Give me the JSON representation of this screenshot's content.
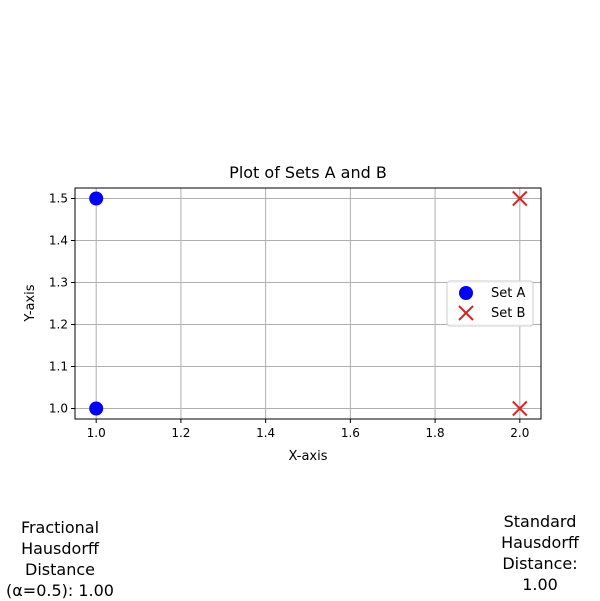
{
  "chart_data": {
    "type": "scatter",
    "title": "Plot of Sets A and B",
    "xlabel": "X-axis",
    "ylabel": "Y-axis",
    "xlim": [
      0.95,
      2.05
    ],
    "ylim": [
      0.975,
      1.525
    ],
    "xticks": [
      1.0,
      1.2,
      1.4,
      1.6,
      1.8,
      2.0
    ],
    "xtick_labels": [
      "1.0",
      "1.2",
      "1.4",
      "1.6",
      "1.8",
      "2.0"
    ],
    "yticks": [
      1.0,
      1.1,
      1.2,
      1.3,
      1.4,
      1.5
    ],
    "ytick_labels": [
      "1.0",
      "1.1",
      "1.2",
      "1.3",
      "1.4",
      "1.5"
    ],
    "grid": true,
    "legend_position": "right",
    "series": [
      {
        "name": "Set A",
        "marker": "circle",
        "color": "#0000ff",
        "points": [
          {
            "x": 1.0,
            "y": 1.0
          },
          {
            "x": 1.0,
            "y": 1.5
          }
        ]
      },
      {
        "name": "Set B",
        "marker": "x",
        "color": "#d62728",
        "points": [
          {
            "x": 2.0,
            "y": 1.0
          },
          {
            "x": 2.0,
            "y": 1.5
          }
        ]
      }
    ]
  },
  "annotations": {
    "fractional": "Fractional\nHausdorff\nDistance\n(α=0.5): 1.00",
    "standard": "Standard\nHausdorff\nDistance:\n1.00"
  }
}
